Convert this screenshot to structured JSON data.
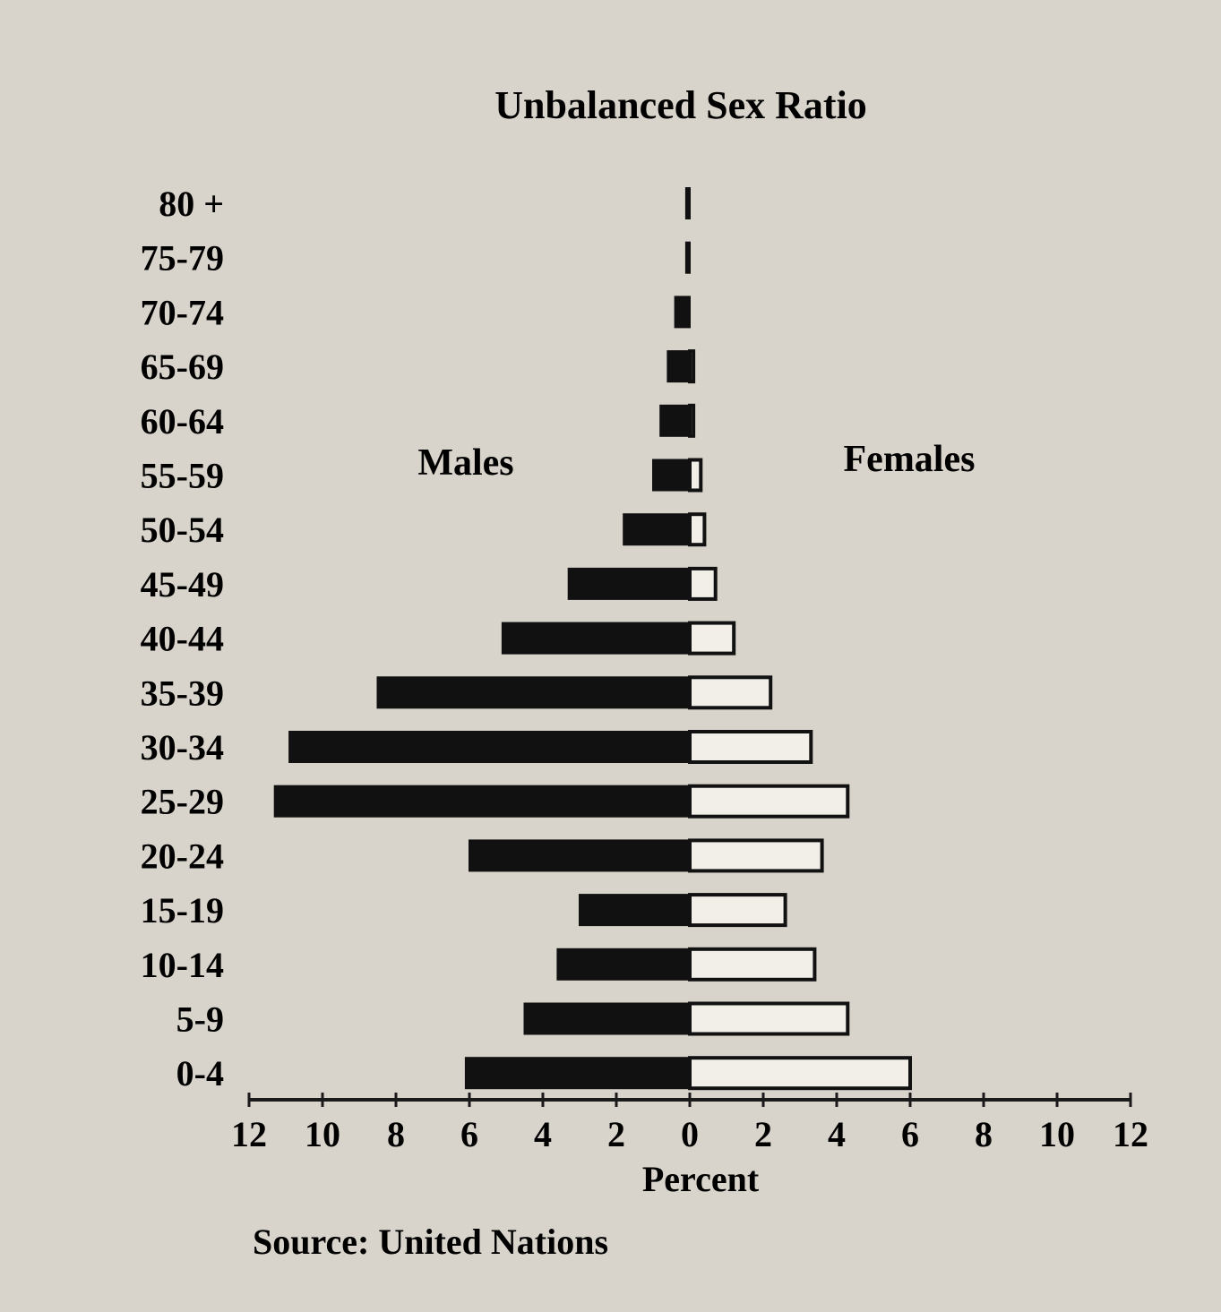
{
  "chart_data": {
    "type": "bar",
    "title": "Unbalanced Sex Ratio",
    "xlabel": "Percent",
    "xlim": [
      -12,
      12
    ],
    "x_tick_labels": [
      "12",
      "10",
      "8",
      "6",
      "4",
      "2",
      "0",
      "2",
      "4",
      "6",
      "8",
      "10",
      "12"
    ],
    "categories": [
      "80 +",
      "75-79",
      "70-74",
      "65-69",
      "60-64",
      "55-59",
      "50-54",
      "45-49",
      "40-44",
      "35-39",
      "30-34",
      "25-29",
      "20-24",
      "15-19",
      "10-14",
      "5-9",
      "0-4"
    ],
    "series": [
      {
        "name": "Males",
        "color": "#111111",
        "values": [
          0.1,
          0.1,
          0.4,
          0.6,
          0.8,
          1.0,
          1.8,
          3.3,
          5.1,
          8.5,
          10.9,
          11.3,
          6.0,
          3.0,
          3.6,
          4.5,
          6.1
        ]
      },
      {
        "name": "Females",
        "color": "#f2efe8",
        "values": [
          0.0,
          0.0,
          0.0,
          0.1,
          0.1,
          0.3,
          0.4,
          0.7,
          1.2,
          2.2,
          3.3,
          4.3,
          3.6,
          2.6,
          3.4,
          4.3,
          6.0
        ]
      }
    ],
    "grid": false,
    "legend": "inline"
  },
  "source": "Source:  United Nations"
}
